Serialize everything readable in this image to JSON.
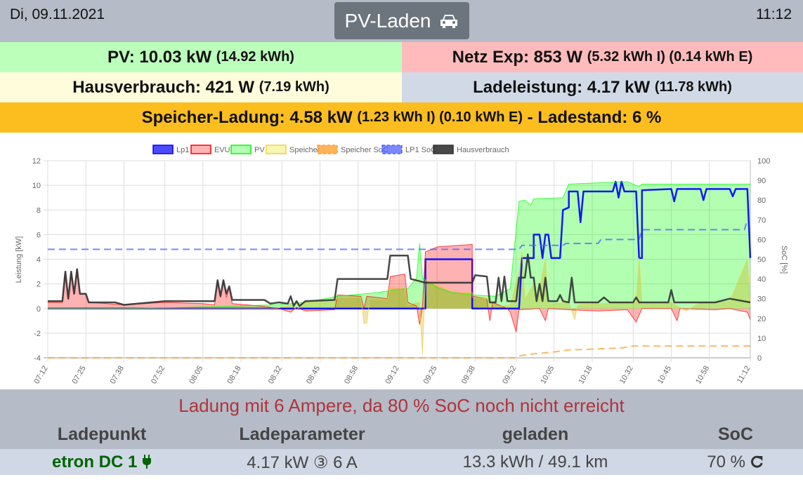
{
  "header": {
    "date": "Di, 09.11.2021",
    "mode_button": "PV-Laden",
    "mode_icon": "car-icon",
    "time": "11:12"
  },
  "summary": {
    "pv": {
      "label": "PV: 10.03 kW",
      "detail": "(14.92 kWh)",
      "color": "#bbffbb"
    },
    "netz": {
      "label": "Netz Exp: 853 W",
      "detail": "(5.32 kWh I) (0.14 kWh E)",
      "color": "#ffbbbb"
    },
    "haus": {
      "label": "Hausverbrauch: 421 W",
      "detail": "(7.19 kWh)",
      "color": "#fffcdc"
    },
    "lade": {
      "label": "Ladeleistung: 4.17 kW",
      "detail": "(11.78 kWh)",
      "color": "#d2d9e6"
    },
    "speicher": {
      "label": "Speicher-Ladung: 4.58 kW",
      "detail": "(1.23 kWh I) (0.10 kWh E)",
      "suffix": "- Ladestand: 6 %",
      "color": "#fcbe1f"
    }
  },
  "chart_data": {
    "type": "line",
    "ylabel_left": "Leistung [kW]",
    "ylabel_right": "SoC [%]",
    "ylim_left": [
      -4,
      12
    ],
    "yticks_left": [
      -4,
      -2,
      0,
      2,
      4,
      6,
      8,
      10,
      12
    ],
    "ylim_right": [
      0,
      100
    ],
    "yticks_right": [
      0,
      10,
      20,
      30,
      40,
      50,
      60,
      70,
      80,
      90,
      100
    ],
    "x_ticks": [
      "07:12",
      "07:25",
      "07:38",
      "07:52",
      "08:05",
      "08:18",
      "08:32",
      "08:45",
      "08:58",
      "09:12",
      "09:25",
      "09:38",
      "09:52",
      "10:05",
      "10:18",
      "10:32",
      "10:45",
      "10:58",
      "11:12"
    ],
    "xlim": [
      "07:12",
      "11:12"
    ],
    "grid": true,
    "legend": "top",
    "series": [
      {
        "name": "Lp1",
        "axis": "left",
        "color": "#0000ff",
        "fill": false,
        "points": [
          [
            "07:12",
            0
          ],
          [
            "09:21",
            0
          ],
          [
            "09:21",
            4.0
          ],
          [
            "09:37",
            4.0
          ],
          [
            "09:37",
            0
          ],
          [
            "09:53",
            0
          ],
          [
            "09:54",
            4.1
          ],
          [
            "09:58",
            4.1
          ],
          [
            "09:58",
            6.0
          ],
          [
            "10:00",
            6.0
          ],
          [
            "10:01",
            4.1
          ],
          [
            "10:02",
            6.0
          ],
          [
            "10:03",
            6.0
          ],
          [
            "10:04",
            4.1
          ],
          [
            "10:07",
            4.1
          ],
          [
            "10:08",
            8.0
          ],
          [
            "10:10",
            8.2
          ],
          [
            "10:10",
            9.5
          ],
          [
            "10:13",
            9.5
          ],
          [
            "10:14",
            7.0
          ],
          [
            "10:15",
            9.5
          ],
          [
            "10:25",
            9.5
          ],
          [
            "10:26",
            10.3
          ],
          [
            "10:27",
            9.0
          ],
          [
            "10:28",
            10.3
          ],
          [
            "10:29",
            9.5
          ],
          [
            "10:33",
            9.5
          ],
          [
            "10:34",
            4.1
          ],
          [
            "10:35",
            4.1
          ],
          [
            "10:35",
            9.6
          ],
          [
            "10:45",
            9.7
          ],
          [
            "10:46",
            8.7
          ],
          [
            "10:47",
            9.7
          ],
          [
            "10:55",
            9.7
          ],
          [
            "10:56",
            8.8
          ],
          [
            "10:57",
            9.7
          ],
          [
            "11:05",
            9.7
          ],
          [
            "11:06",
            9.1
          ],
          [
            "11:07",
            9.7
          ],
          [
            "11:11",
            9.7
          ],
          [
            "11:12",
            4.1
          ]
        ]
      },
      {
        "name": "EVU",
        "axis": "left",
        "color": "#ff0000",
        "fill": true,
        "points": [
          [
            "07:12",
            0.5
          ],
          [
            "07:17",
            0.5
          ],
          [
            "07:18",
            3.0
          ],
          [
            "07:19",
            0.8
          ],
          [
            "07:20",
            3.0
          ],
          [
            "07:21",
            1.2
          ],
          [
            "07:22",
            3.2
          ],
          [
            "07:23",
            1.2
          ],
          [
            "07:25",
            1.2
          ],
          [
            "07:26",
            0.5
          ],
          [
            "07:38",
            0.3
          ],
          [
            "07:52",
            0.5
          ],
          [
            "08:05",
            0.4
          ],
          [
            "08:09",
            0.3
          ],
          [
            "08:10",
            2.3
          ],
          [
            "08:11",
            0.9
          ],
          [
            "08:12",
            2.3
          ],
          [
            "08:13",
            0.9
          ],
          [
            "08:14",
            1.7
          ],
          [
            "08:15",
            0.4
          ],
          [
            "08:25",
            0.2
          ],
          [
            "08:31",
            0.0
          ],
          [
            "08:35",
            -0.3
          ],
          [
            "08:37",
            0.1
          ],
          [
            "08:40",
            -0.2
          ],
          [
            "08:50",
            -0.1
          ],
          [
            "08:51",
            1.1
          ],
          [
            "08:59",
            1.0
          ],
          [
            "09:00",
            0
          ],
          [
            "09:01",
            1.0
          ],
          [
            "09:08",
            0.8
          ],
          [
            "09:09",
            2.6
          ],
          [
            "09:14",
            2.8
          ],
          [
            "09:15",
            0.5
          ],
          [
            "09:18",
            0.2
          ],
          [
            "09:19",
            -1.3
          ],
          [
            "09:20",
            0.1
          ],
          [
            "09:21",
            4.6
          ],
          [
            "09:25",
            5.0
          ],
          [
            "09:37",
            5.2
          ],
          [
            "09:37",
            1.0
          ],
          [
            "09:42",
            0.8
          ],
          [
            "09:43",
            -1.0
          ],
          [
            "09:44",
            0.5
          ],
          [
            "09:49",
            0
          ],
          [
            "09:50",
            -0.3
          ],
          [
            "09:52",
            -1.9
          ],
          [
            "09:53",
            -0.1
          ],
          [
            "10:00",
            0
          ],
          [
            "10:02",
            -1.0
          ],
          [
            "10:03",
            0
          ],
          [
            "10:10",
            -0.1
          ],
          [
            "10:20",
            -0.2
          ],
          [
            "10:30",
            -0.1
          ],
          [
            "10:33",
            -1.1
          ],
          [
            "10:35",
            0
          ],
          [
            "10:45",
            0
          ],
          [
            "10:47",
            -1.0
          ],
          [
            "10:48",
            0
          ],
          [
            "11:00",
            -0.1
          ],
          [
            "11:05",
            0
          ],
          [
            "11:11",
            -0.3
          ],
          [
            "11:12",
            -0.9
          ]
        ]
      },
      {
        "name": "PV",
        "axis": "left",
        "color": "#00ff00",
        "fill": true,
        "points": [
          [
            "07:12",
            0
          ],
          [
            "07:38",
            0
          ],
          [
            "08:00",
            0.1
          ],
          [
            "08:30",
            0.3
          ],
          [
            "08:40",
            0.5
          ],
          [
            "08:51",
            1.0
          ],
          [
            "09:05",
            1.3
          ],
          [
            "09:10",
            1.5
          ],
          [
            "09:15",
            1.6
          ],
          [
            "09:18",
            2.5
          ],
          [
            "09:19",
            5.3
          ],
          [
            "09:20",
            2.5
          ],
          [
            "09:25",
            1.7
          ],
          [
            "09:30",
            1.3
          ],
          [
            "09:37",
            1.1
          ],
          [
            "09:45",
            1.0
          ],
          [
            "09:50",
            1.6
          ],
          [
            "09:53",
            8.7
          ],
          [
            "09:55",
            8.8
          ],
          [
            "09:57",
            8.4
          ],
          [
            "09:58",
            8.9
          ],
          [
            "10:08",
            9.0
          ],
          [
            "10:10",
            10.1
          ],
          [
            "10:20",
            10.2
          ],
          [
            "10:30",
            10.3
          ],
          [
            "10:34",
            9.9
          ],
          [
            "10:35",
            10.1
          ],
          [
            "11:12",
            10.1
          ]
        ]
      },
      {
        "name": "Speicher",
        "axis": "left",
        "color": "#f0d040",
        "fill": true,
        "points": [
          [
            "07:12",
            0
          ],
          [
            "08:30",
            0
          ],
          [
            "08:35",
            0.3
          ],
          [
            "08:37",
            -0.1
          ],
          [
            "08:40",
            0.5
          ],
          [
            "08:50",
            0.6
          ],
          [
            "08:51",
            0.9
          ],
          [
            "08:59",
            0.9
          ],
          [
            "09:00",
            -1.2
          ],
          [
            "09:01",
            -1.2
          ],
          [
            "09:02",
            0.8
          ],
          [
            "09:08",
            0.7
          ],
          [
            "09:09",
            1.7
          ],
          [
            "09:14",
            1.7
          ],
          [
            "09:15",
            0.3
          ],
          [
            "09:19",
            0.5
          ],
          [
            "09:20",
            -3.7
          ],
          [
            "09:21",
            2.3
          ],
          [
            "09:25",
            1.9
          ],
          [
            "09:30",
            1.4
          ],
          [
            "09:37",
            1.3
          ],
          [
            "09:37",
            0.9
          ],
          [
            "09:42",
            0.8
          ],
          [
            "09:45",
            0.1
          ],
          [
            "09:50",
            0.3
          ],
          [
            "09:53",
            3.0
          ],
          [
            "09:54",
            4.6
          ],
          [
            "09:55",
            0.8
          ],
          [
            "09:58",
            2.0
          ],
          [
            "09:59",
            0.5
          ],
          [
            "10:02",
            4.0
          ],
          [
            "10:03",
            0.4
          ],
          [
            "10:10",
            0.5
          ],
          [
            "10:12",
            -0.9
          ],
          [
            "10:13",
            0.3
          ],
          [
            "10:20",
            0.4
          ],
          [
            "10:33",
            0.5
          ],
          [
            "10:34",
            4.1
          ],
          [
            "10:35",
            0.4
          ],
          [
            "10:45",
            0.5
          ],
          [
            "10:50",
            -0.2
          ],
          [
            "10:55",
            0.5
          ],
          [
            "11:05",
            0.6
          ],
          [
            "11:11",
            4.0
          ],
          [
            "11:12",
            0.3
          ]
        ]
      },
      {
        "name": "Speicher SoC",
        "axis": "right",
        "color": "#ffa030",
        "fill": false,
        "dashed": true,
        "points": [
          [
            "07:12",
            0
          ],
          [
            "09:52",
            0
          ],
          [
            "09:53",
            1
          ],
          [
            "09:58",
            2
          ],
          [
            "10:05",
            3
          ],
          [
            "10:10",
            4
          ],
          [
            "10:28",
            5
          ],
          [
            "10:32",
            6
          ],
          [
            "11:12",
            6
          ]
        ]
      },
      {
        "name": "LP1 SoC",
        "axis": "right",
        "color": "#5060ff",
        "fill": false,
        "dashed": true,
        "points": [
          [
            "07:12",
            55
          ],
          [
            "09:53",
            55
          ],
          [
            "09:54",
            57
          ],
          [
            "10:08",
            57
          ],
          [
            "10:09",
            58
          ],
          [
            "10:20",
            58
          ],
          [
            "10:21",
            60
          ],
          [
            "10:34",
            60
          ],
          [
            "10:35",
            65
          ],
          [
            "11:10",
            65
          ],
          [
            "11:11",
            70
          ]
        ]
      },
      {
        "name": "Hausverbrauch",
        "axis": "left",
        "color": "#333333",
        "fill": false,
        "points": [
          [
            "07:12",
            0.6
          ],
          [
            "07:17",
            0.6
          ],
          [
            "07:18",
            3.0
          ],
          [
            "07:19",
            0.8
          ],
          [
            "07:20",
            3.0
          ],
          [
            "07:21",
            1.2
          ],
          [
            "07:22",
            3.2
          ],
          [
            "07:23",
            1.2
          ],
          [
            "07:25",
            1.2
          ],
          [
            "07:26",
            0.5
          ],
          [
            "07:35",
            0.5
          ],
          [
            "07:38",
            0.3
          ],
          [
            "07:52",
            0.6
          ],
          [
            "08:09",
            0.6
          ],
          [
            "08:10",
            2.3
          ],
          [
            "08:11",
            1.0
          ],
          [
            "08:12",
            2.3
          ],
          [
            "08:13",
            1.2
          ],
          [
            "08:14",
            1.8
          ],
          [
            "08:15",
            0.7
          ],
          [
            "08:26",
            0.7
          ],
          [
            "08:28",
            0.4
          ],
          [
            "08:31",
            0.5
          ],
          [
            "08:34",
            0.4
          ],
          [
            "08:35",
            1.0
          ],
          [
            "08:36",
            0.2
          ],
          [
            "08:37",
            0.6
          ],
          [
            "08:38",
            0.2
          ],
          [
            "08:40",
            0.6
          ],
          [
            "08:50",
            0.7
          ],
          [
            "08:51",
            2.4
          ],
          [
            "09:08",
            2.4
          ],
          [
            "09:09",
            4.3
          ],
          [
            "09:15",
            4.3
          ],
          [
            "09:16",
            2.4
          ],
          [
            "09:21",
            2.1
          ],
          [
            "09:37",
            2.1
          ],
          [
            "09:38",
            2.7
          ],
          [
            "09:42",
            2.6
          ],
          [
            "09:43",
            0.5
          ],
          [
            "09:45",
            0.5
          ],
          [
            "09:46",
            2.5
          ],
          [
            "09:47",
            0.6
          ],
          [
            "09:48",
            2.6
          ],
          [
            "09:49",
            0.6
          ],
          [
            "09:52",
            0.6
          ],
          [
            "09:53",
            2.5
          ],
          [
            "09:55",
            2.5
          ],
          [
            "09:56",
            4.4
          ],
          [
            "09:57",
            2.5
          ],
          [
            "09:58",
            2.5
          ],
          [
            "09:59",
            0.6
          ],
          [
            "10:00",
            2.0
          ],
          [
            "10:01",
            0.6
          ],
          [
            "10:02",
            2.5
          ],
          [
            "10:03",
            0.6
          ],
          [
            "10:06",
            0.6
          ],
          [
            "10:07",
            1.1
          ],
          [
            "10:08",
            0.6
          ],
          [
            "10:10",
            0.5
          ],
          [
            "10:11",
            2.5
          ],
          [
            "10:12",
            0.5
          ],
          [
            "10:20",
            0.5
          ],
          [
            "10:22",
            0.9
          ],
          [
            "10:24",
            0.5
          ],
          [
            "10:32",
            0.5
          ],
          [
            "10:33",
            0.9
          ],
          [
            "10:34",
            0.5
          ],
          [
            "10:44",
            0.5
          ],
          [
            "10:45",
            1.5
          ],
          [
            "10:46",
            0.5
          ],
          [
            "11:00",
            0.5
          ],
          [
            "11:05",
            0.8
          ],
          [
            "11:12",
            0.5
          ]
        ]
      }
    ]
  },
  "status": {
    "message": "Ladung mit 6 Ampere, da 80 % SoC noch nicht erreicht",
    "color": "#b0333a"
  },
  "table": {
    "headers": [
      "Ladepunkt",
      "Ladeparameter",
      "geladen",
      "SoC"
    ],
    "row": {
      "name": "etron DC 1",
      "plug_icon": "plug-icon",
      "params": "4.17 kW ③ 6 A",
      "charged": "13.3 kWh / 49.1 km",
      "soc": "70 %",
      "refresh_icon": "refresh-icon",
      "name_color": "#006400"
    }
  }
}
